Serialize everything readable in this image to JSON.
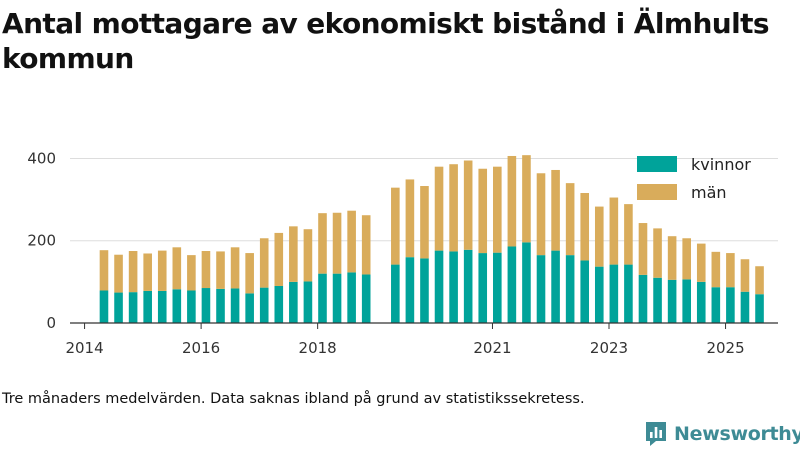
{
  "title": "Antal mottagare av ekonomiskt bistånd i Älmhults kommun",
  "footnote": "Tre månaders medelvärden. Data saknas ibland på grund av statistikssekretess.",
  "brand": {
    "name": "Newsworthy",
    "icon": "newsworthy-logo-icon"
  },
  "colors": {
    "kvinnor": "#00a39a",
    "man": "#d9ac5b",
    "axis": "#333333",
    "grid": "#dddddd"
  },
  "chart_data": {
    "type": "bar",
    "stacked": true,
    "title": "Antal mottagare av ekonomiskt bistånd i Älmhults kommun",
    "xlabel": "",
    "ylabel": "",
    "ylim": [
      0,
      440
    ],
    "xlim": [
      2013.75,
      2025.9
    ],
    "yticks": [
      0,
      200,
      400
    ],
    "xticks": [
      2014,
      2016,
      2018,
      2021,
      2023,
      2025
    ],
    "legend": {
      "position": "top-right"
    },
    "series": [
      {
        "name": "kvinnor",
        "color": "#00a39a",
        "points": [
          {
            "x": 2014.333,
            "y": 79
          },
          {
            "x": 2014.583,
            "y": 74
          },
          {
            "x": 2014.833,
            "y": 75
          },
          {
            "x": 2015.083,
            "y": 78
          },
          {
            "x": 2015.333,
            "y": 78
          },
          {
            "x": 2015.583,
            "y": 82
          },
          {
            "x": 2015.833,
            "y": 79
          },
          {
            "x": 2016.083,
            "y": 85
          },
          {
            "x": 2016.333,
            "y": 83
          },
          {
            "x": 2016.583,
            "y": 84
          },
          {
            "x": 2016.833,
            "y": 72
          },
          {
            "x": 2017.083,
            "y": 86
          },
          {
            "x": 2017.333,
            "y": 90
          },
          {
            "x": 2017.583,
            "y": 100
          },
          {
            "x": 2017.833,
            "y": 101
          },
          {
            "x": 2018.083,
            "y": 120
          },
          {
            "x": 2018.333,
            "y": 120
          },
          {
            "x": 2018.583,
            "y": 123
          },
          {
            "x": 2018.833,
            "y": 118
          },
          {
            "x": 2019.333,
            "y": 142
          },
          {
            "x": 2019.583,
            "y": 160
          },
          {
            "x": 2019.833,
            "y": 157
          },
          {
            "x": 2020.083,
            "y": 176
          },
          {
            "x": 2020.333,
            "y": 174
          },
          {
            "x": 2020.583,
            "y": 178
          },
          {
            "x": 2020.833,
            "y": 170
          },
          {
            "x": 2021.083,
            "y": 171
          },
          {
            "x": 2021.333,
            "y": 186
          },
          {
            "x": 2021.583,
            "y": 196
          },
          {
            "x": 2021.833,
            "y": 165
          },
          {
            "x": 2022.083,
            "y": 176
          },
          {
            "x": 2022.333,
            "y": 165
          },
          {
            "x": 2022.583,
            "y": 152
          },
          {
            "x": 2022.833,
            "y": 137
          },
          {
            "x": 2023.083,
            "y": 142
          },
          {
            "x": 2023.333,
            "y": 142
          },
          {
            "x": 2023.583,
            "y": 117
          },
          {
            "x": 2023.833,
            "y": 110
          },
          {
            "x": 2024.083,
            "y": 105
          },
          {
            "x": 2024.333,
            "y": 106
          },
          {
            "x": 2024.583,
            "y": 100
          },
          {
            "x": 2024.833,
            "y": 87
          },
          {
            "x": 2025.083,
            "y": 87
          },
          {
            "x": 2025.333,
            "y": 76
          },
          {
            "x": 2025.583,
            "y": 70
          }
        ]
      },
      {
        "name": "män",
        "color": "#d9ac5b",
        "points": [
          {
            "x": 2014.333,
            "y": 98
          },
          {
            "x": 2014.583,
            "y": 92
          },
          {
            "x": 2014.833,
            "y": 100
          },
          {
            "x": 2015.083,
            "y": 91
          },
          {
            "x": 2015.333,
            "y": 98
          },
          {
            "x": 2015.583,
            "y": 102
          },
          {
            "x": 2015.833,
            "y": 86
          },
          {
            "x": 2016.083,
            "y": 90
          },
          {
            "x": 2016.333,
            "y": 91
          },
          {
            "x": 2016.583,
            "y": 100
          },
          {
            "x": 2016.833,
            "y": 98
          },
          {
            "x": 2017.083,
            "y": 120
          },
          {
            "x": 2017.333,
            "y": 129
          },
          {
            "x": 2017.583,
            "y": 135
          },
          {
            "x": 2017.833,
            "y": 127
          },
          {
            "x": 2018.083,
            "y": 147
          },
          {
            "x": 2018.333,
            "y": 148
          },
          {
            "x": 2018.583,
            "y": 150
          },
          {
            "x": 2018.833,
            "y": 144
          },
          {
            "x": 2019.333,
            "y": 187
          },
          {
            "x": 2019.583,
            "y": 189
          },
          {
            "x": 2019.833,
            "y": 176
          },
          {
            "x": 2020.083,
            "y": 204
          },
          {
            "x": 2020.333,
            "y": 212
          },
          {
            "x": 2020.583,
            "y": 217
          },
          {
            "x": 2020.833,
            "y": 205
          },
          {
            "x": 2021.083,
            "y": 209
          },
          {
            "x": 2021.333,
            "y": 220
          },
          {
            "x": 2021.583,
            "y": 212
          },
          {
            "x": 2021.833,
            "y": 199
          },
          {
            "x": 2022.083,
            "y": 196
          },
          {
            "x": 2022.333,
            "y": 175
          },
          {
            "x": 2022.583,
            "y": 164
          },
          {
            "x": 2022.833,
            "y": 146
          },
          {
            "x": 2023.083,
            "y": 163
          },
          {
            "x": 2023.333,
            "y": 147
          },
          {
            "x": 2023.583,
            "y": 126
          },
          {
            "x": 2023.833,
            "y": 120
          },
          {
            "x": 2024.083,
            "y": 106
          },
          {
            "x": 2024.333,
            "y": 100
          },
          {
            "x": 2024.583,
            "y": 93
          },
          {
            "x": 2024.833,
            "y": 86
          },
          {
            "x": 2025.083,
            "y": 83
          },
          {
            "x": 2025.333,
            "y": 79
          },
          {
            "x": 2025.583,
            "y": 68
          }
        ]
      }
    ]
  }
}
